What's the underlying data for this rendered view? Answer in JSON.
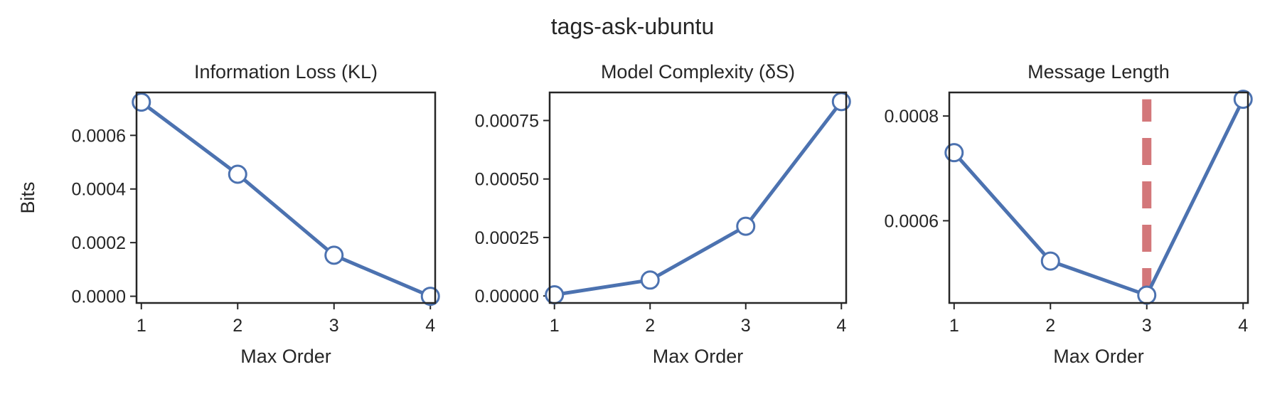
{
  "figure_title": "tags-ask-ubuntu",
  "colors": {
    "line": "#4c72b0",
    "marker_fill": "#ffffff",
    "vline": "#d3777a",
    "axes": "#262626",
    "text": "#262626"
  },
  "chart_data": [
    {
      "type": "line",
      "title": "Information Loss (KL)",
      "xlabel": "Max Order",
      "ylabel": "Bits",
      "x": [
        1,
        2,
        3,
        4
      ],
      "xticks": [
        1,
        2,
        3,
        4
      ],
      "xlim": [
        0.95,
        4.05
      ],
      "ylim": [
        -2.5e-05,
        0.00076
      ],
      "yticks": [
        0,
        0.0002,
        0.0004,
        0.0006
      ],
      "ytick_labels": [
        "0.0000",
        "0.0002",
        "0.0004",
        "0.0006"
      ],
      "series": [
        {
          "values": [
            0.000724,
            0.000455,
            0.000153,
            0.0
          ]
        }
      ]
    },
    {
      "type": "line",
      "title": "Model Complexity (δS)",
      "xlabel": "Max Order",
      "ylabel": "",
      "x": [
        1,
        2,
        3,
        4
      ],
      "xticks": [
        1,
        2,
        3,
        4
      ],
      "xlim": [
        0.95,
        4.05
      ],
      "ylim": [
        -3e-05,
        0.00087
      ],
      "yticks": [
        0,
        0.00025,
        0.0005,
        0.00075
      ],
      "ytick_labels": [
        "0.00000",
        "0.00025",
        "0.00050",
        "0.00075"
      ],
      "series": [
        {
          "values": [
            5e-06,
            6.8e-05,
            0.000298,
            0.000831
          ]
        }
      ]
    },
    {
      "type": "line",
      "title": "Message Length",
      "xlabel": "Max Order",
      "ylabel": "",
      "x": [
        1,
        2,
        3,
        4
      ],
      "xticks": [
        1,
        2,
        3,
        4
      ],
      "xlim": [
        0.95,
        4.05
      ],
      "ylim": [
        0.000443,
        0.000845
      ],
      "yticks": [
        0.0006,
        0.0008
      ],
      "ytick_labels": [
        "0.0006",
        "0.0008"
      ],
      "series": [
        {
          "values": [
            0.00073,
            0.000523,
            0.000458,
            0.000832
          ]
        }
      ],
      "vline": {
        "x": 3,
        "ymin": 0.000458,
        "ymax": 0.000832,
        "style": "dashed"
      }
    }
  ]
}
